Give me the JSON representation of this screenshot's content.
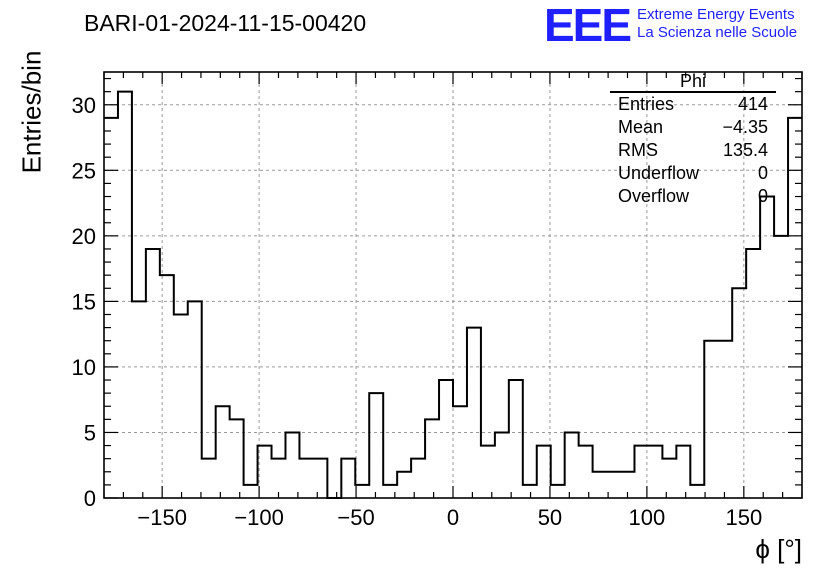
{
  "header": {
    "title": "BARI-01-2024-11-15-00420",
    "logo": "EEE",
    "logo_line1": "Extreme Energy Events",
    "logo_line2": "La Scienza nelle Scuole"
  },
  "stats": {
    "title": "Phi",
    "rows": [
      {
        "key": "Entries",
        "value": "414"
      },
      {
        "key": "Mean",
        "value": "−4.35"
      },
      {
        "key": "RMS",
        "value": "135.4"
      },
      {
        "key": "Underflow",
        "value": "0"
      },
      {
        "key": "Overflow",
        "value": "0"
      }
    ]
  },
  "chart_data": {
    "type": "histogram",
    "title": "BARI-01-2024-11-15-00420",
    "xlabel": "ϕ [°]",
    "ylabel": "Entries/bin",
    "xlim": [
      -180,
      180
    ],
    "ylim": [
      0,
      32.5
    ],
    "bin_width": 7.2,
    "bin_edges_start": -180,
    "values": [
      29,
      31,
      15,
      19,
      17,
      14,
      15,
      3,
      7,
      6,
      1,
      4,
      3,
      5,
      3,
      3,
      0,
      3,
      1,
      8,
      1,
      2,
      3,
      6,
      9,
      7,
      13,
      4,
      5,
      9,
      1,
      4,
      1,
      5,
      4,
      2,
      2,
      2,
      4,
      4,
      3,
      4,
      1,
      12,
      12,
      16,
      19,
      23,
      20,
      29
    ],
    "xticks": [
      -150,
      -100,
      -50,
      0,
      50,
      100,
      150
    ],
    "xtick_labels": [
      "−150",
      "−100",
      "−50",
      "0",
      "50",
      "100",
      "150"
    ],
    "yticks": [
      0,
      5,
      10,
      15,
      20,
      25,
      30
    ],
    "ytick_labels": [
      "0",
      "5",
      "10",
      "15",
      "20",
      "25",
      "30"
    ],
    "grid": true,
    "line_color": "#000000",
    "logo_color": "#1f1fff"
  }
}
